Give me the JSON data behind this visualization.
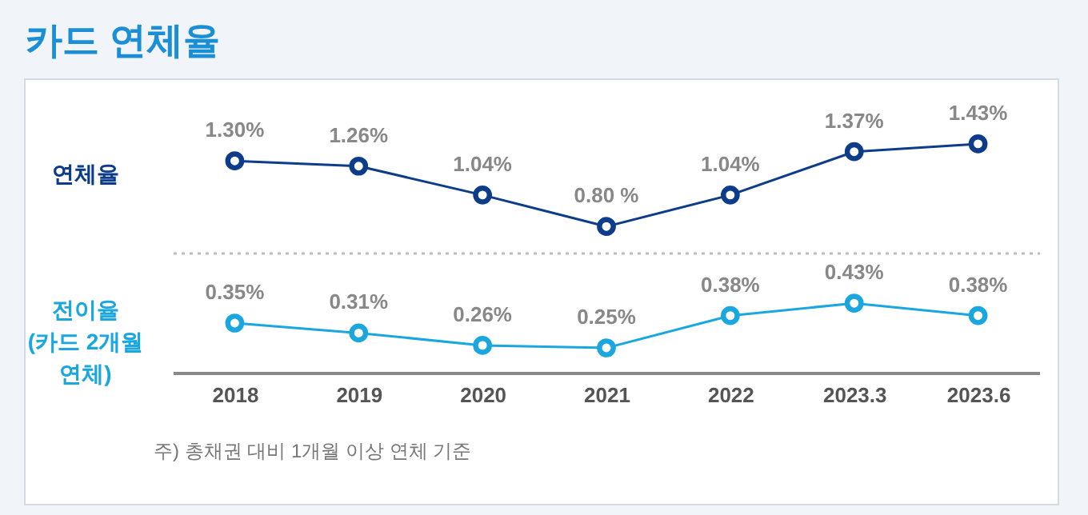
{
  "chart_data": [
    {
      "type": "line",
      "title": "카드 연체율",
      "ylabel": "연체율",
      "categories": [
        "2018",
        "2019",
        "2020",
        "2021",
        "2022",
        "2023.3",
        "2023.6"
      ],
      "series": [
        {
          "color": "#0d3d8a",
          "values": [
            1.3,
            1.26,
            1.04,
            0.8,
            1.04,
            1.37,
            1.43
          ],
          "value_labels": [
            "1.30%",
            "1.26%",
            "1.04%",
            "0.80 %",
            "1.04%",
            "1.37%",
            "1.43%"
          ]
        }
      ],
      "marker": "circle",
      "legend": false,
      "grid": false,
      "tick_labels": false
    },
    {
      "type": "line",
      "ylabel": "전이율\n(카드 2개월\n연체)",
      "categories": [
        "2018",
        "2019",
        "2020",
        "2021",
        "2022",
        "2023.3",
        "2023.6"
      ],
      "series": [
        {
          "color": "#1aa7e0",
          "values": [
            0.35,
            0.31,
            0.26,
            0.25,
            0.38,
            0.43,
            0.38
          ],
          "value_labels": [
            "0.35%",
            "0.31%",
            "0.26%",
            "0.25%",
            "0.38%",
            "0.43%",
            "0.38%"
          ]
        }
      ],
      "marker": "circle",
      "legend": false,
      "grid": false,
      "tick_labels": "x",
      "annotations": [
        "주) 총채권 대비 1개월 이상 연체 기준"
      ]
    }
  ]
}
